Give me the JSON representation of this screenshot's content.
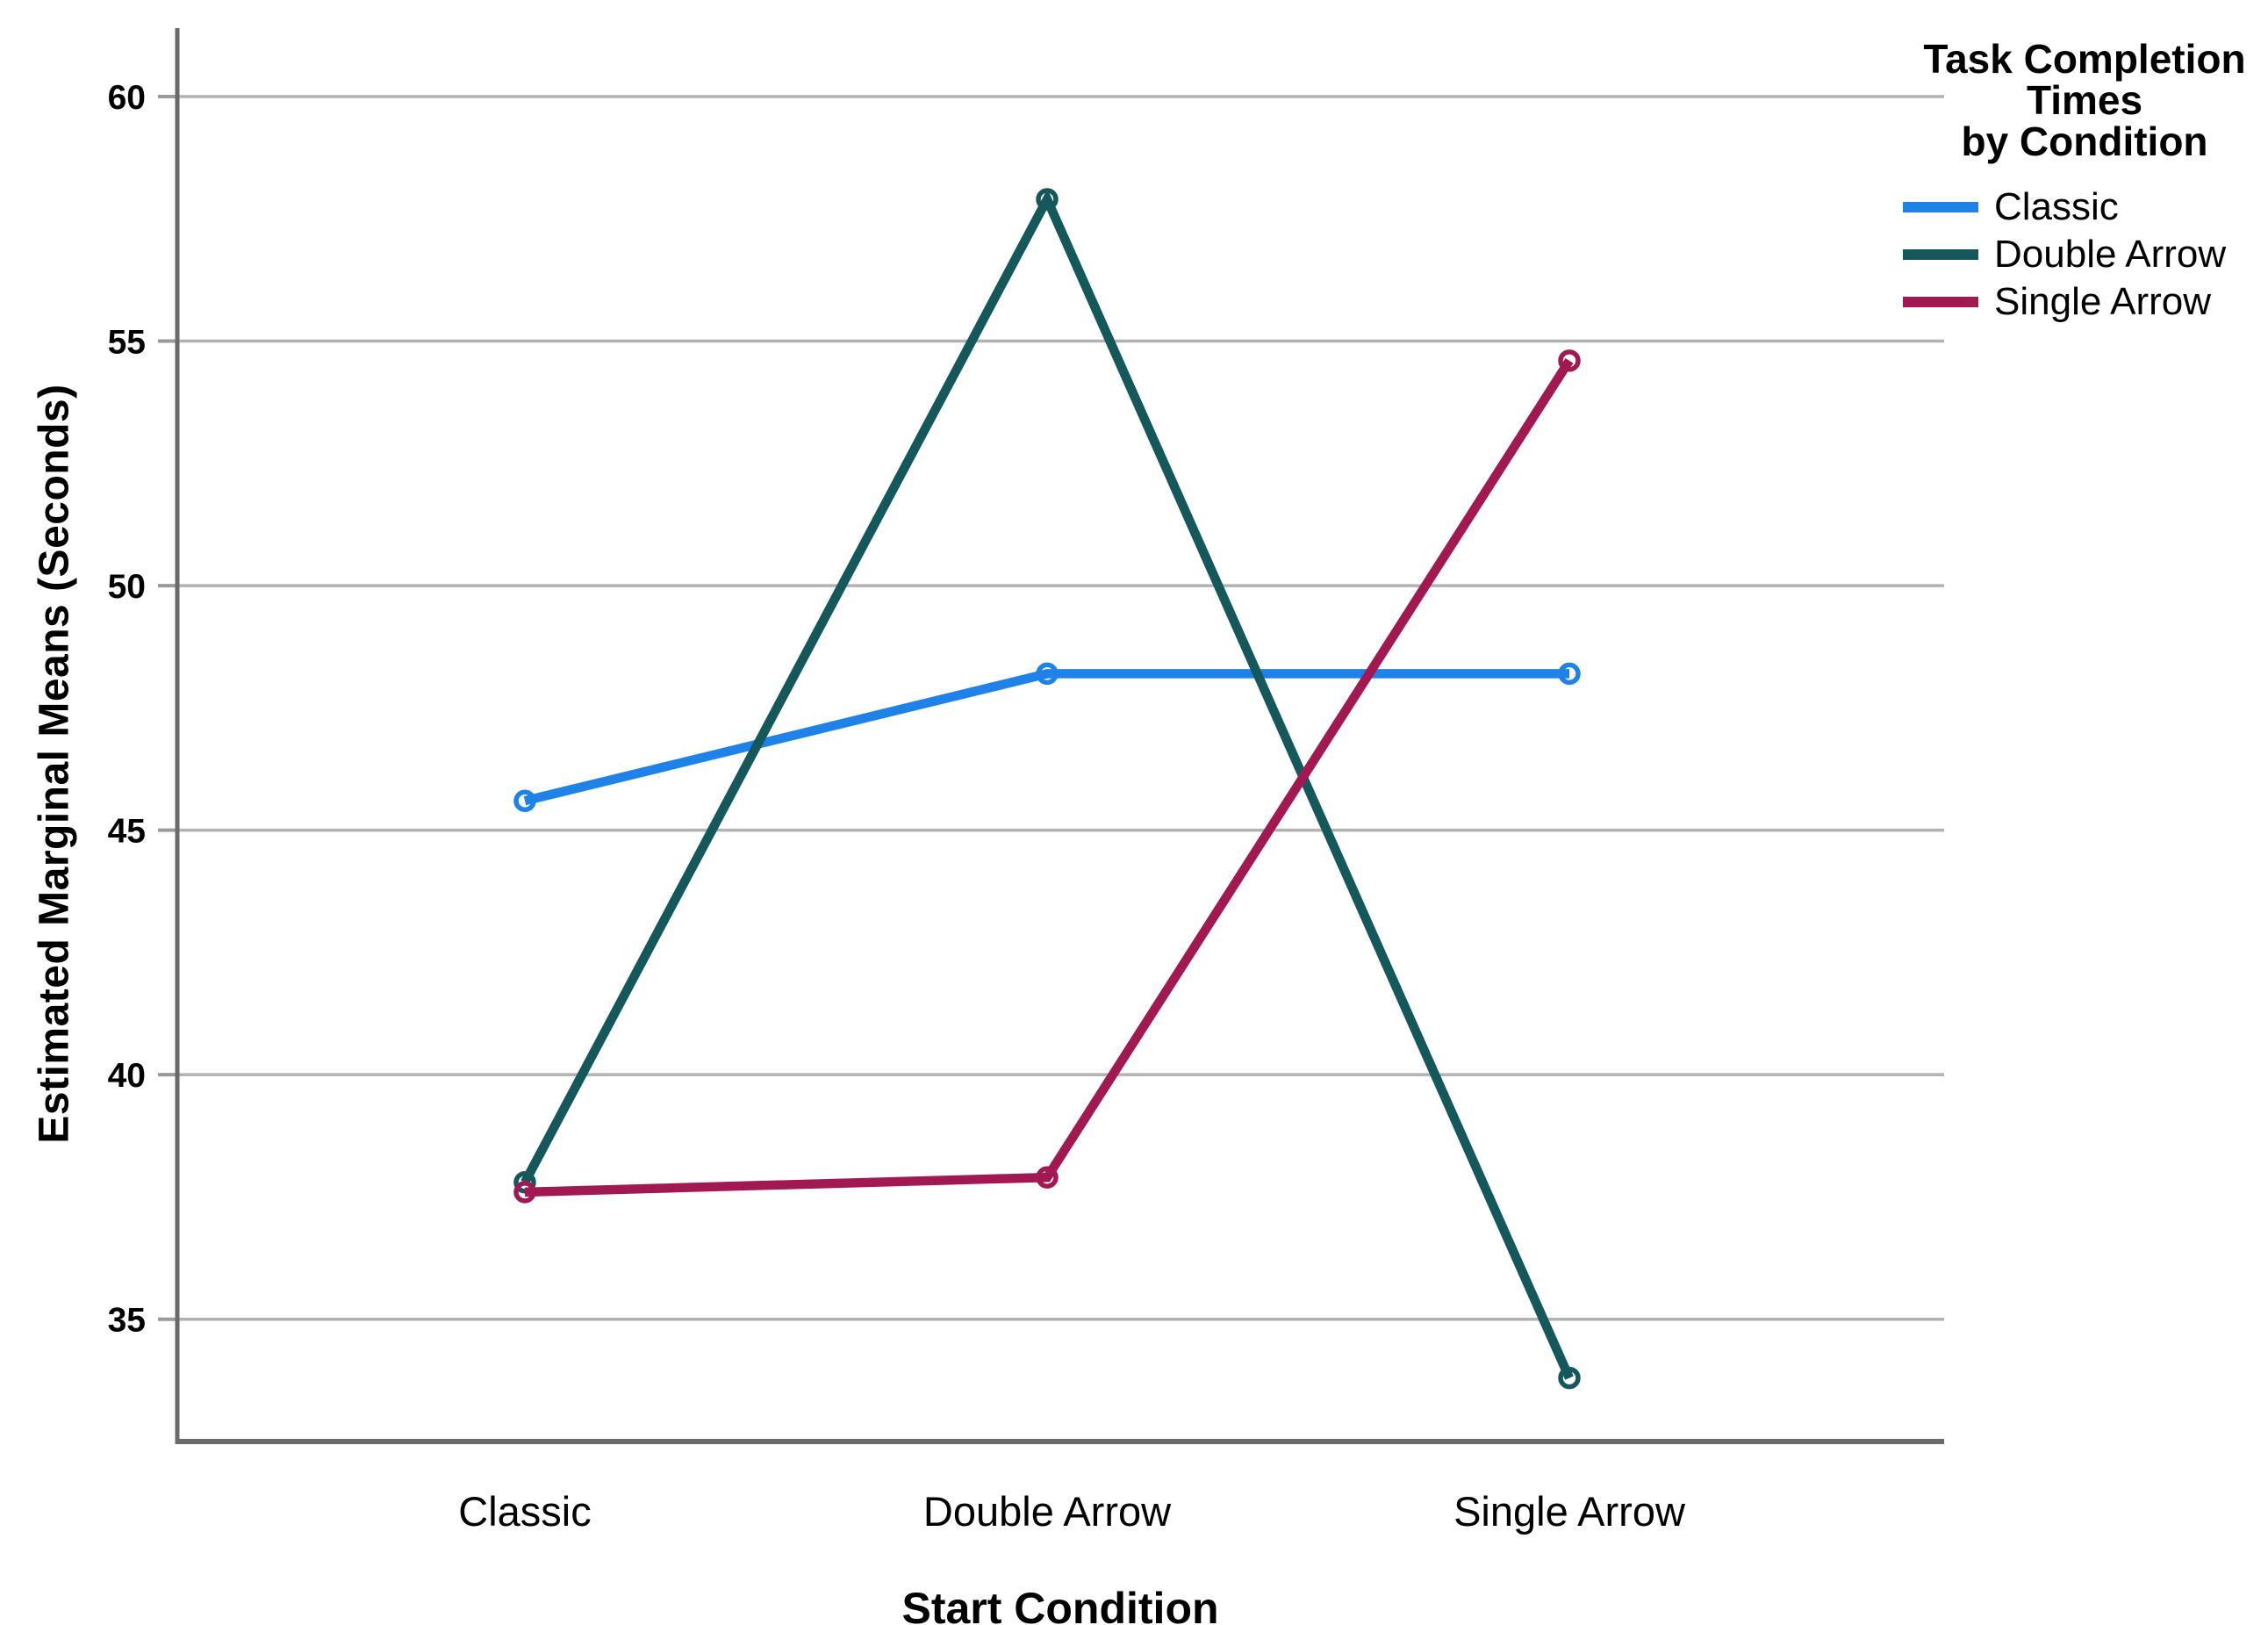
{
  "chart_data": {
    "type": "line",
    "xlabel": "Start Condition",
    "ylabel": "Estimated Marginal Means (Seconds)",
    "categories": [
      "Classic",
      "Double Arrow",
      "Single Arrow"
    ],
    "series": [
      {
        "name": "Classic",
        "color": "#1f82e8",
        "values": [
          45.6,
          48.2,
          48.2
        ]
      },
      {
        "name": "Double Arrow",
        "color": "#14585c",
        "values": [
          37.8,
          57.9,
          33.8
        ]
      },
      {
        "name": "Single Arrow",
        "color": "#a21952",
        "values": [
          37.6,
          37.9,
          54.6
        ]
      }
    ],
    "yticks": [
      35,
      40,
      45,
      50,
      55,
      60
    ],
    "ylim": [
      32.5,
      61.4
    ],
    "grid": true,
    "marker": "open-circle",
    "legend": {
      "title": "Task Completion Times by Condition",
      "title_lines": [
        "Task Completion",
        "Times",
        "by Condition"
      ],
      "position": "right-top"
    },
    "axis_color": "#6a6a6a",
    "gridline_color": "#b2b2b2"
  }
}
